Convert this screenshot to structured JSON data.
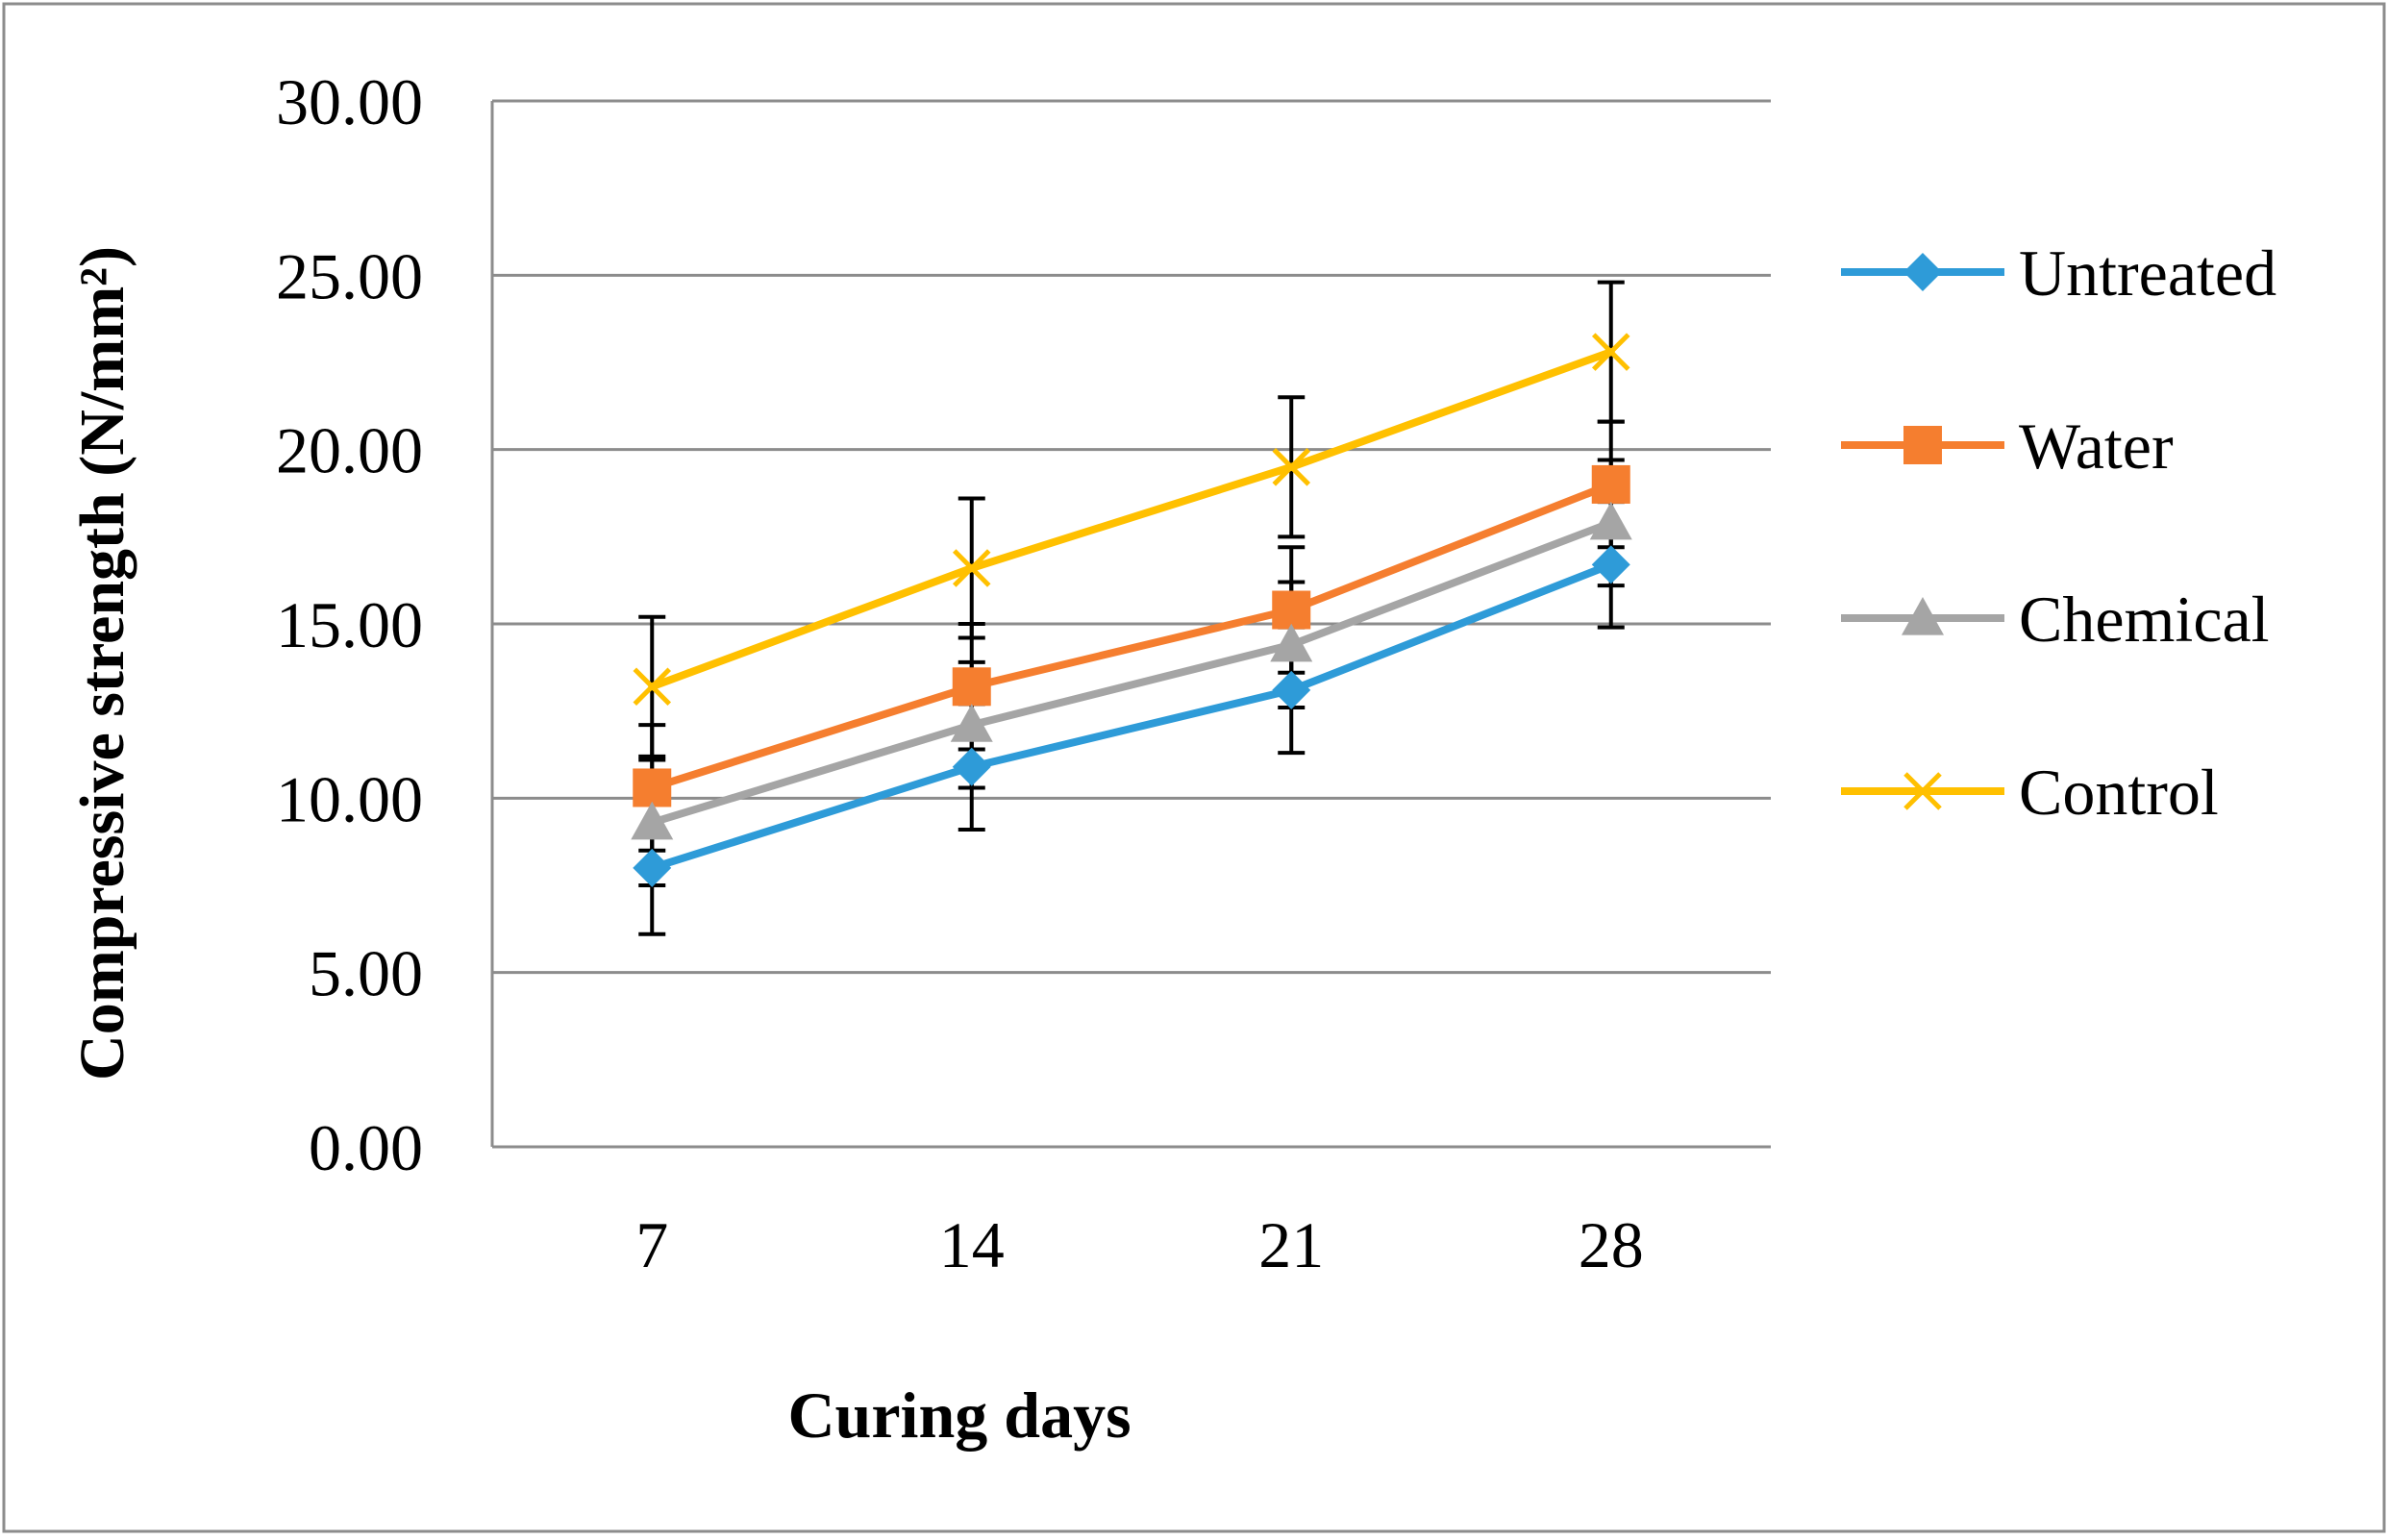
{
  "chart_data": {
    "type": "line",
    "xlabel": "Curing days",
    "ylabel": "Compressive strength (N/mm²)",
    "categories": [
      "7",
      "14",
      "21",
      "28"
    ],
    "ylim": [
      0,
      30
    ],
    "yticks": [
      "0.00",
      "5.00",
      "10.00",
      "15.00",
      "20.00",
      "25.00",
      "30.00"
    ],
    "grid": true,
    "legend_position": "right",
    "series": [
      {
        "name": "Untreated",
        "color": "#2E9BD8",
        "marker": "diamond",
        "values": [
          8.0,
          10.9,
          13.1,
          16.7
        ],
        "error": [
          1.9,
          1.8,
          1.8,
          1.8
        ]
      },
      {
        "name": "Water",
        "color": "#F57E2F",
        "marker": "square",
        "values": [
          10.3,
          13.2,
          15.4,
          19.0
        ],
        "error": [
          1.8,
          1.8,
          1.8,
          1.8
        ]
      },
      {
        "name": "Chemical",
        "color": "#A5A5A5",
        "marker": "triangle",
        "values": [
          9.3,
          12.1,
          14.4,
          17.9
        ],
        "error": [
          1.8,
          1.8,
          1.8,
          1.8
        ]
      },
      {
        "name": "Control",
        "color": "#FFC000",
        "marker": "cross",
        "values": [
          13.2,
          16.6,
          19.5,
          22.8
        ],
        "error": [
          2.0,
          2.0,
          2.0,
          2.0
        ]
      }
    ]
  }
}
